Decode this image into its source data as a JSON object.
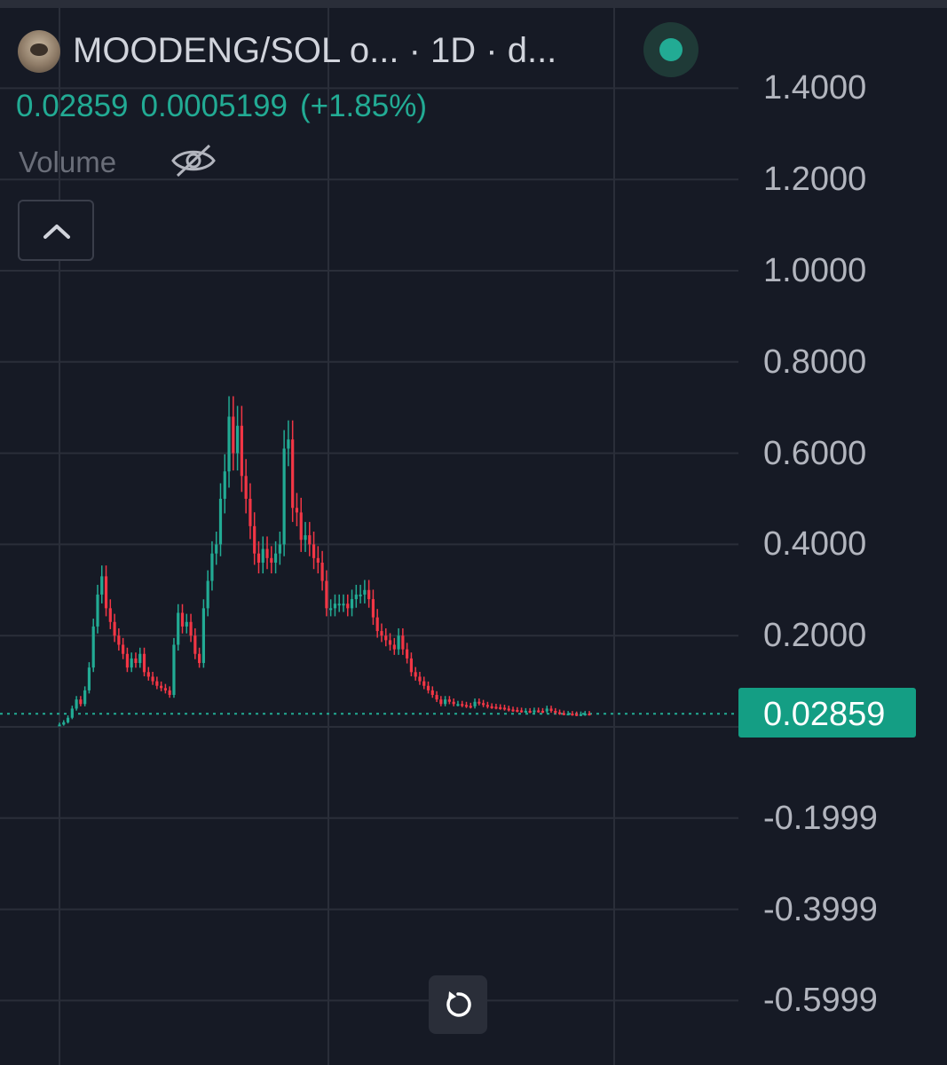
{
  "header": {
    "title": "MOODENG/SOL o...  · 1D · d...",
    "price": "0.02859",
    "change": "0.0005199",
    "change_pct": "(+1.85%)",
    "volume_label": "Volume",
    "live_color": "#22ab94"
  },
  "icons": {
    "avatar": "token-avatar",
    "live": "live-status-dot",
    "eye": "eye-hidden-icon",
    "collapse": "chevron-up-icon",
    "reset": "reset-rotate-icon"
  },
  "price_scale": {
    "labels": [
      "1.4000",
      "1.2000",
      "1.0000",
      "0.8000",
      "0.6000",
      "0.4000",
      "0.2000",
      "-0.1999",
      "-0.3999",
      "-0.5999"
    ]
  },
  "last_price": {
    "label": "0.02859",
    "value": 0.02859
  },
  "colors": {
    "up": "#22ab94",
    "down": "#f23645",
    "background": "#161a25",
    "grid": "#2a2e39",
    "axis_text": "#b2b5be"
  },
  "chart_data": {
    "type": "line",
    "subtype": "candlestick-approximation",
    "title": "MOODENG/SOL",
    "interval": "1D",
    "ylim": [
      -0.6,
      1.4
    ],
    "grid": true,
    "series": [
      {
        "name": "MOODENG/SOL",
        "values": [
          0.005,
          0.01,
          0.02,
          0.04,
          0.06,
          0.05,
          0.08,
          0.13,
          0.22,
          0.29,
          0.33,
          0.26,
          0.23,
          0.2,
          0.18,
          0.16,
          0.13,
          0.15,
          0.14,
          0.16,
          0.12,
          0.11,
          0.1,
          0.09,
          0.085,
          0.08,
          0.07,
          0.18,
          0.25,
          0.22,
          0.23,
          0.2,
          0.16,
          0.14,
          0.26,
          0.32,
          0.38,
          0.4,
          0.5,
          0.56,
          0.68,
          0.6,
          0.66,
          0.55,
          0.5,
          0.44,
          0.38,
          0.36,
          0.39,
          0.37,
          0.36,
          0.38,
          0.4,
          0.61,
          0.63,
          0.48,
          0.47,
          0.41,
          0.42,
          0.4,
          0.37,
          0.36,
          0.32,
          0.26,
          0.26,
          0.27,
          0.27,
          0.27,
          0.26,
          0.28,
          0.29,
          0.29,
          0.3,
          0.28,
          0.24,
          0.21,
          0.2,
          0.19,
          0.18,
          0.17,
          0.2,
          0.17,
          0.15,
          0.12,
          0.11,
          0.1,
          0.09,
          0.08,
          0.07,
          0.06,
          0.05,
          0.06,
          0.055,
          0.05,
          0.05,
          0.048,
          0.046,
          0.045,
          0.055,
          0.052,
          0.048,
          0.045,
          0.044,
          0.043,
          0.042,
          0.04,
          0.038,
          0.037,
          0.036,
          0.035,
          0.035,
          0.034,
          0.036,
          0.035,
          0.034,
          0.04,
          0.035,
          0.032,
          0.03,
          0.029,
          0.029,
          0.028,
          0.027,
          0.028,
          0.029,
          0.0286
        ]
      }
    ]
  }
}
